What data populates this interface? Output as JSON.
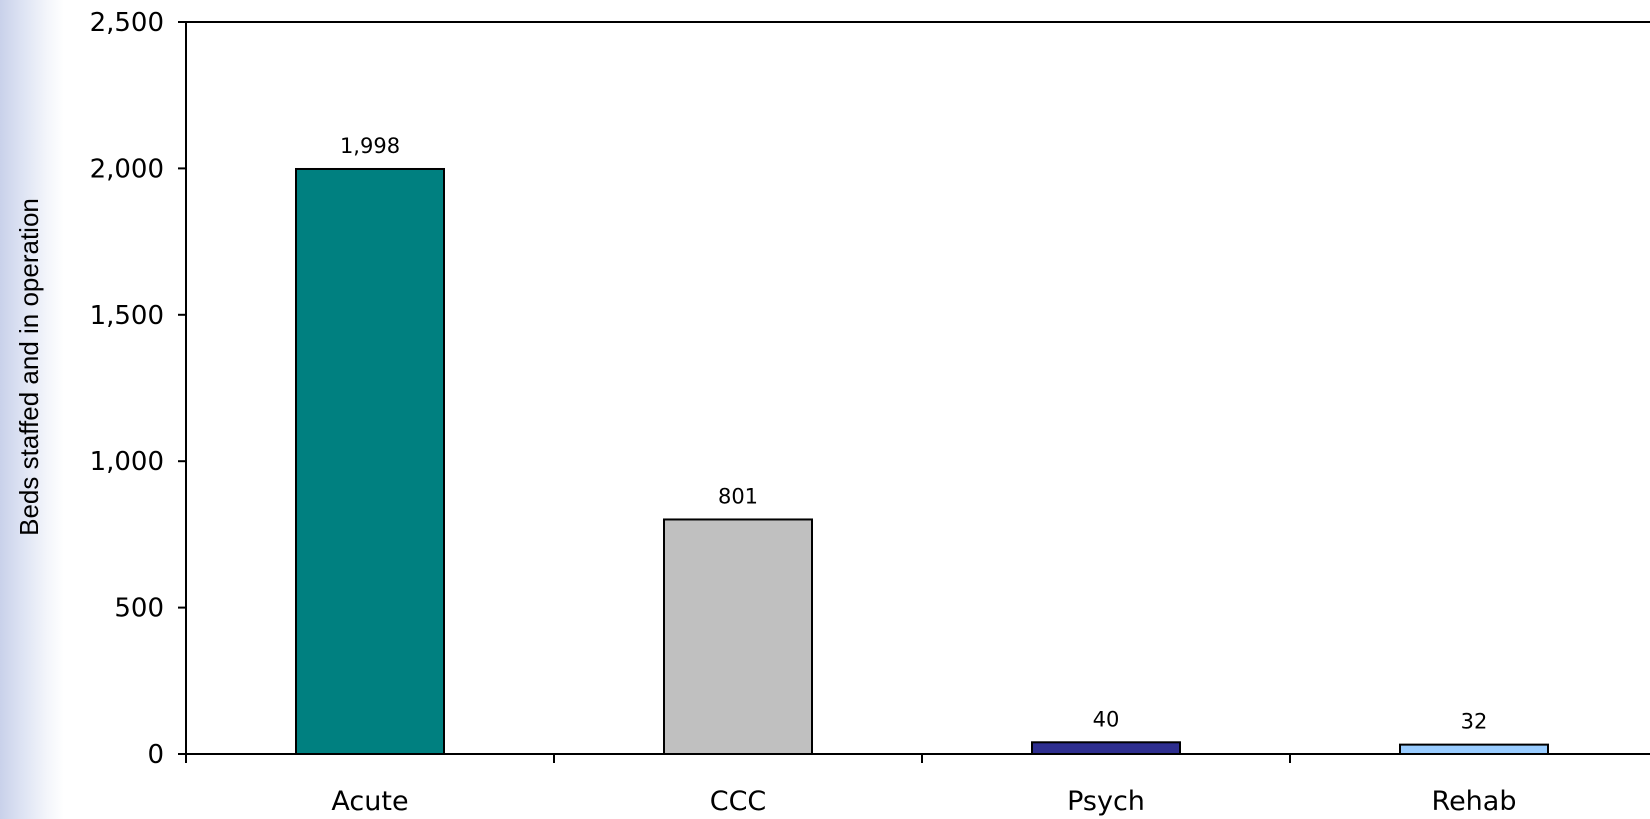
{
  "chart_data": {
    "type": "bar",
    "categories": [
      "Acute",
      "CCC",
      "Psych",
      "Rehab"
    ],
    "values": [
      1998,
      801,
      40,
      32
    ],
    "data_labels": [
      "1,998",
      "801",
      "40",
      "32"
    ],
    "bar_colors": [
      "#008080",
      "#c0c0c0",
      "#2e2e8f",
      "#99ccff"
    ],
    "ylabel": "Beds staffed and in operation",
    "xlabel": "",
    "ylim": [
      0,
      2500
    ],
    "y_ticks": [
      0,
      500,
      1000,
      1500,
      2000,
      2500
    ],
    "y_tick_labels": [
      "0",
      "500",
      "1,000",
      "1,500",
      "2,000",
      "2,500"
    ],
    "grid": false,
    "legend": "none"
  }
}
